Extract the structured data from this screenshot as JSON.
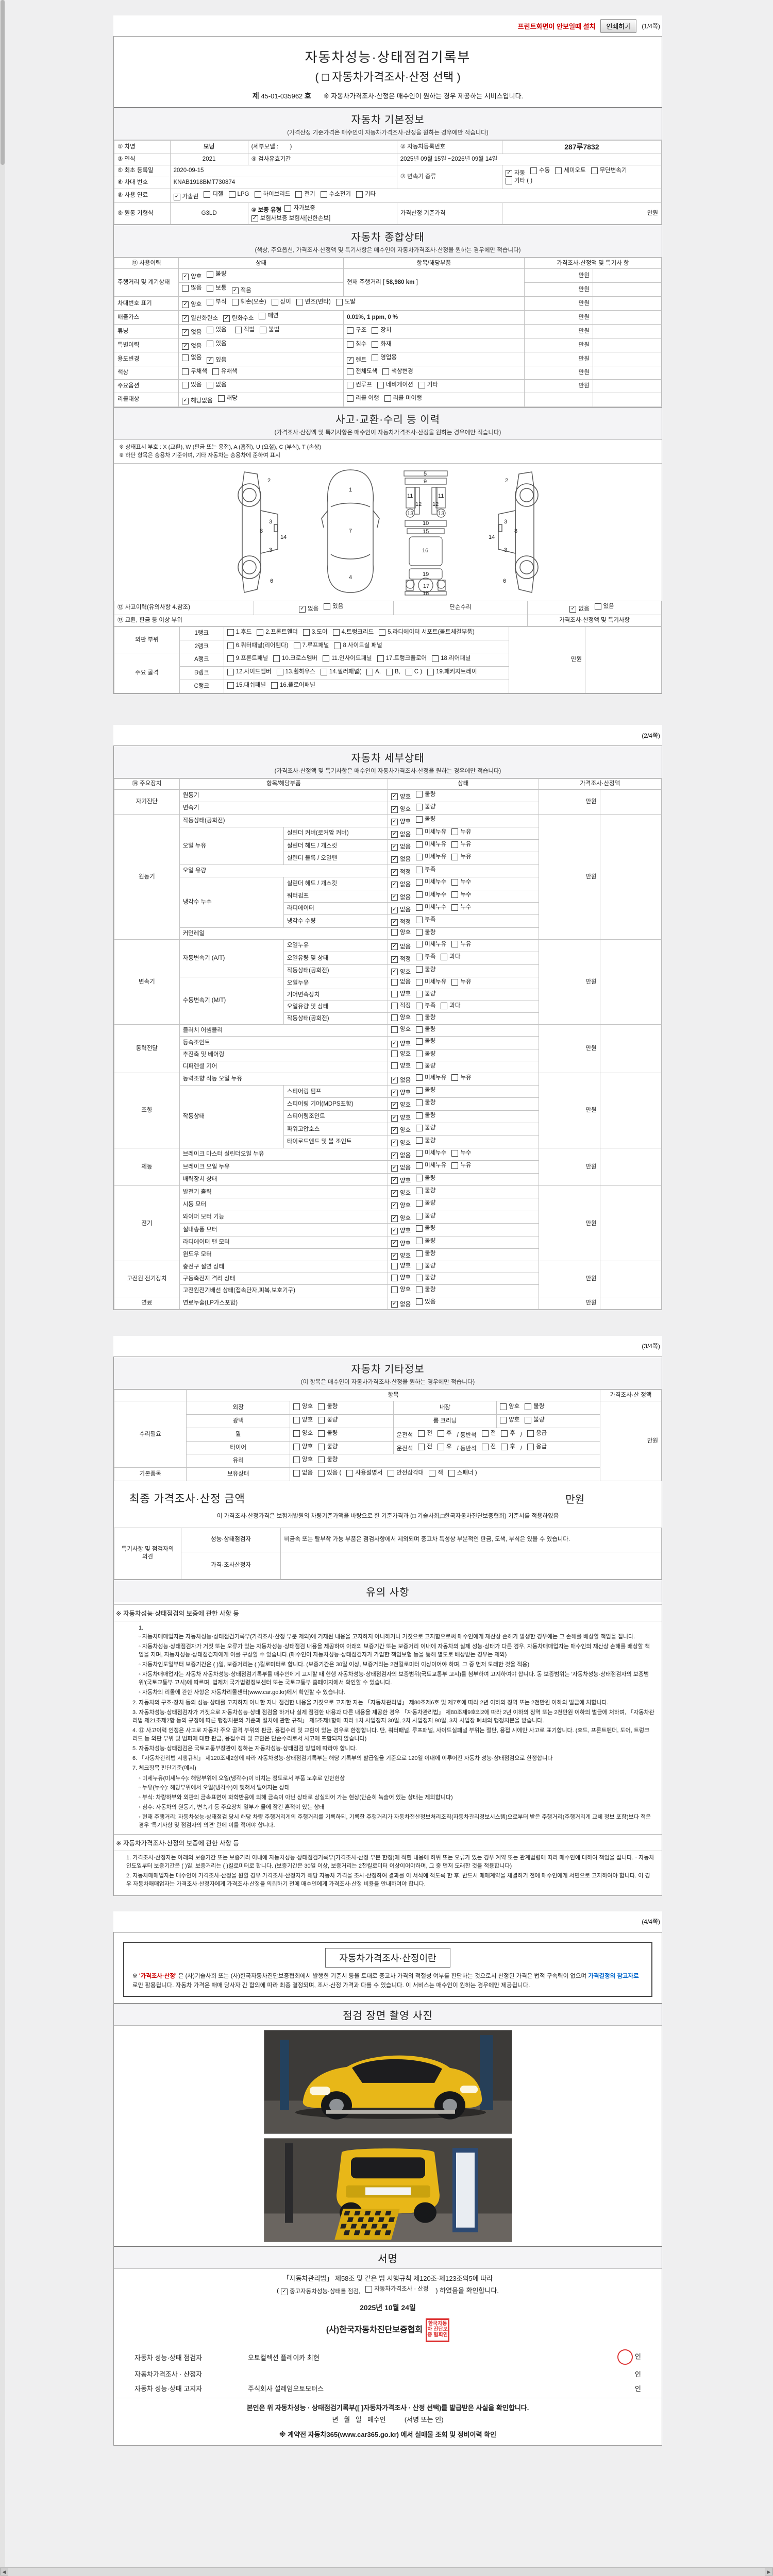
{
  "chrome": {
    "print_hint": "프린트화면이 안보일때 설치",
    "print_button": "인쇄하기",
    "page_marks": [
      "(1/4쪽)",
      "(2/4쪽)",
      "(3/4쪽)",
      "(4/4쪽)"
    ]
  },
  "title": {
    "line1": "자동차성능·상태점검기록부",
    "line2": "( □ 자동차가격조사·산정 선택 )",
    "no_prefix": "제",
    "no_value": "45-01-035962",
    "no_suffix": "호",
    "service_note": "※ 자동차가격조사·산정은 매수인이 원하는 경우 제공하는 서비스입니다."
  },
  "basic": {
    "band_title": "자동차 기본정보",
    "band_sub": "(가격산정 기준가격은 매수인이 자동차가격조사·산정을 원하는 경우에만 적습니다)",
    "f1": "① 차명",
    "v1": "모닝",
    "v1b": "(세부모델 :",
    "v1c": ")",
    "f2": "② 자동차등록번호",
    "v2": "287루7832",
    "f3": "③ 연식",
    "v3": "2021",
    "f4": "④ 검사유효기간",
    "v4": "2025년 09월 15일 ~2026년 09월 14일",
    "f5": "⑤ 최초 등록일",
    "v5": "2020-09-15",
    "f6": "⑥ 차대 번호",
    "v6": "KNAB1918BMT730874",
    "f7": "⑦ 변속기 종류",
    "trans_opts": [
      {
        "t": "자동",
        "c": true
      },
      {
        "t": "수동",
        "c": false
      },
      {
        "t": "세미오토",
        "c": false
      },
      {
        "t": "무단변속기",
        "c": false
      }
    ],
    "trans_opts2": [
      {
        "t": "기타 (          )",
        "c": false
      }
    ],
    "f8": "⑧ 사용 연료",
    "fuel_opts": [
      {
        "t": "가솔린",
        "c": true
      },
      {
        "t": "디젤",
        "c": false
      },
      {
        "t": "LPG",
        "c": false
      },
      {
        "t": "하이브리드",
        "c": false
      },
      {
        "t": "전기",
        "c": false
      },
      {
        "t": "수소전기",
        "c": false
      },
      {
        "t": "기타",
        "c": false
      }
    ],
    "f9": "⑨ 원동 기형식",
    "v9": "G3LD",
    "f10": "⑩ 보증 유형",
    "warranty_opts": [
      {
        "t": "자가보증",
        "c": false
      },
      {
        "t": "보험사보증 보험사[신한손보]",
        "c": true
      }
    ],
    "price_base_label": "가격산정 기준가격",
    "price_base_unit": "만원"
  },
  "overall": {
    "band_title": "자동차 종합상태",
    "band_sub": "(색상, 주요옵션, 가격조사·산정액 및 특기사항은 매수인이 자동차가격조사·산정을 원하는 경우에만 적습니다)",
    "h1": "⑪ 사용이력",
    "h2": "상태",
    "h3": "항목/해당부품",
    "h4": "가격조사·산정액 및 특기사 항",
    "r1k": "주행거리 및 계기상태",
    "r1o1": [
      {
        "t": "양호",
        "c": true
      },
      {
        "t": "불량",
        "c": false
      }
    ],
    "r1o2": [
      {
        "t": "많음",
        "c": false
      },
      {
        "t": "보통",
        "c": false
      },
      {
        "t": "적음",
        "c": true
      }
    ],
    "r1mid": "현재 주행거리 [",
    "r1km": "58,980 km",
    "r1mid2": "]",
    "r2k": "차대번호 표기",
    "r2o": [
      {
        "t": "양호",
        "c": true
      },
      {
        "t": "부식",
        "c": false
      },
      {
        "t": "훼손(오손)",
        "c": false
      },
      {
        "t": "상이",
        "c": false
      },
      {
        "t": "변조(변타)",
        "c": false
      },
      {
        "t": "도말",
        "c": false
      }
    ],
    "r3k": "배출가스",
    "r3o": [
      {
        "t": "일산화탄소",
        "c": true
      },
      {
        "t": "탄화수소",
        "c": true
      },
      {
        "t": "매연",
        "c": false
      }
    ],
    "r3v": "0.01%,  1 ppm,  0 %",
    "r4k": "튜닝",
    "r4o1": [
      {
        "t": "없음",
        "c": true
      },
      {
        "t": "있음",
        "c": false
      }
    ],
    "r4o2": [
      {
        "t": "적법",
        "c": false
      },
      {
        "t": "불법",
        "c": false
      }
    ],
    "r4o3": [
      {
        "t": "구조",
        "c": false
      },
      {
        "t": "장치",
        "c": false
      }
    ],
    "r5k": "특별이력",
    "r5o1": [
      {
        "t": "없음",
        "c": true
      },
      {
        "t": "있음",
        "c": false
      }
    ],
    "r5o2": [
      {
        "t": "침수",
        "c": false
      },
      {
        "t": "화재",
        "c": false
      }
    ],
    "r6k": "용도변경",
    "r6o1": [
      {
        "t": "없음",
        "c": false
      },
      {
        "t": "있음",
        "c": true
      }
    ],
    "r6o2": [
      {
        "t": "렌트",
        "c": true
      },
      {
        "t": "영업용",
        "c": false
      }
    ],
    "r7k": "색상",
    "r7o1": [
      {
        "t": "무채색",
        "c": false
      },
      {
        "t": "유채색",
        "c": false
      }
    ],
    "r7o2": [
      {
        "t": "전체도색",
        "c": false
      },
      {
        "t": "색상변경",
        "c": false
      }
    ],
    "r8k": "주요옵션",
    "r8o1": [
      {
        "t": "있음",
        "c": false
      },
      {
        "t": "없음",
        "c": false
      }
    ],
    "r8o2": [
      {
        "t": "썬루프",
        "c": false
      },
      {
        "t": "네비게이션",
        "c": false
      },
      {
        "t": "기타",
        "c": false
      }
    ],
    "r9k": "리콜대상",
    "r9o1": [
      {
        "t": "해당없음",
        "c": true
      },
      {
        "t": "해당",
        "c": false
      }
    ],
    "r9o2": [
      {
        "t": "리콜 이행",
        "c": false
      },
      {
        "t": "리콜 미이행",
        "c": false
      }
    ],
    "mwon": "만원"
  },
  "accident": {
    "band_title": "사고·교환·수리 등 이력",
    "band_sub": "(가격조사·산정액 및 특기사항은 매수인이 자동차가격조사·산정을 원하는 경우에만 적습니다)",
    "note1": "※ 상태표시 부호 : X (교환), W (판금 또는 용접), A (흠집), U (요철), C (부식), T (손상)",
    "note2": "※ 하단 항목은 승용차 기준이며, 기타 자동차는 승용차에 준하여 표시",
    "r12k": "⑫ 사고이력(유의사항 4.참조)",
    "r12o1": [
      {
        "t": "없음",
        "c": true
      },
      {
        "t": "있음",
        "c": false
      }
    ],
    "r12mid": "단순수리",
    "r12o2": [
      {
        "t": "없음",
        "c": true
      },
      {
        "t": "있음",
        "c": false
      }
    ],
    "r13k": "⑬ 교환, 판금 등 이상 부위",
    "r13h": "가격조사·산정액 및 특기사항",
    "g1": "외판 부위",
    "g1r1": "1랭크",
    "g1r1o": [
      {
        "t": "1.후드",
        "c": false
      },
      {
        "t": "2.프론트휀더",
        "c": false
      },
      {
        "t": "3.도어",
        "c": false
      },
      {
        "t": "4.트렁크리드",
        "c": false
      },
      {
        "t": "5.라디에이터 서포트(볼트체결부품)",
        "c": false
      }
    ],
    "g1r2": "2랭크",
    "g1r2o": [
      {
        "t": "6.쿼터패널(리어휀다)",
        "c": false
      },
      {
        "t": "7.루프패널",
        "c": false
      },
      {
        "t": "8.사이드실 패널",
        "c": false
      }
    ],
    "g2": "주요 골격",
    "g2r1": "A랭크",
    "g2r1o": [
      {
        "t": "9.프론트패널",
        "c": false
      },
      {
        "t": "10.크로스멤버",
        "c": false
      },
      {
        "t": "11.인사이드패널",
        "c": false
      },
      {
        "t": "17.트렁크플로어",
        "c": false
      },
      {
        "t": "18.리어패널",
        "c": false
      }
    ],
    "g2r2": "B랭크",
    "g2r2o": [
      {
        "t": "12.사이드멤버",
        "c": false
      },
      {
        "t": "13.휠하우스",
        "c": false
      },
      {
        "t": "14.필러패널(",
        "c": false
      },
      {
        "t": "A,",
        "c": false
      },
      {
        "t": "B,",
        "c": false
      },
      {
        "t": "C )",
        "c": false
      },
      {
        "t": "19.패키지트레이",
        "c": false
      }
    ],
    "g2r3": "C랭크",
    "g2r3o": [
      {
        "t": "15.대쉬패널",
        "c": false
      },
      {
        "t": "16.플로어패널",
        "c": false
      }
    ],
    "mwon": "만원"
  },
  "detail": {
    "band_title": "자동차 세부상태",
    "band_sub": "(가격조사·산정액 및 특기사항은 매수인이 자동차가격조사·산정을 원하는 경우에만 적습니다)",
    "h1": "⑭ 주요장치",
    "h2": "항목/해당부품",
    "h3": "상태",
    "h4": "가격조사·산정액",
    "mwon": "만원",
    "g1": "자기진단",
    "g1r1": "원동기",
    "g1r2": "변속기",
    "gb_ok": [
      {
        "t": "양호",
        "c": true
      },
      {
        "t": "불량",
        "c": false
      }
    ],
    "gb_no": [
      {
        "t": "양호",
        "c": false
      },
      {
        "t": "불량",
        "c": false
      }
    ],
    "g2": "원동기",
    "g2r1": "작동상태(공회전)",
    "g2s1": "오일 누유",
    "g2s1r1": "실린더 커버(로커암 커버)",
    "g2s1r2": "실린더 헤드 / 개스킷",
    "g2s1r3": "실린더 블록 / 오일팬",
    "leak_no": [
      {
        "t": "없음",
        "c": true
      },
      {
        "t": "미세누유",
        "c": false
      },
      {
        "t": "누유",
        "c": false
      }
    ],
    "leak_none": [
      {
        "t": "없음",
        "c": false
      },
      {
        "t": "미세누유",
        "c": false
      },
      {
        "t": "누유",
        "c": false
      }
    ],
    "g2r2": "오일 유량",
    "vol_ok": [
      {
        "t": "적정",
        "c": true
      },
      {
        "t": "부족",
        "c": false
      }
    ],
    "g2s2": "냉각수 누수",
    "g2s2r1": "실린더 헤드 / 개스킷",
    "g2s2r2": "워터펌프",
    "g2s2r3": "라디에이터",
    "g2s2r4": "냉각수 수량",
    "water_no": [
      {
        "t": "없음",
        "c": true
      },
      {
        "t": "미세누수",
        "c": false
      },
      {
        "t": "누수",
        "c": false
      }
    ],
    "g2r3": "커먼레일",
    "g3": "변속기",
    "g3s1": "자동변속기 (A/T)",
    "g3s1r1": "오일누유",
    "g3s1r2": "오일유량 및 상태",
    "g3s1r3": "작동상태(공회전)",
    "vol3_ok": [
      {
        "t": "적정",
        "c": true
      },
      {
        "t": "부족",
        "c": false
      },
      {
        "t": "과다",
        "c": false
      }
    ],
    "vol3_no": [
      {
        "t": "적정",
        "c": false
      },
      {
        "t": "부족",
        "c": false
      },
      {
        "t": "과다",
        "c": false
      }
    ],
    "g3s2": "수동변속기 (M/T)",
    "g3s2r1": "오일누유",
    "g3s2r2": "기어변속장치",
    "g3s2r3": "오일유량 및 상태",
    "g3s2r4": "작동상태(공회전)",
    "g4": "동력전달",
    "g4r1": "클러치 어셈블리",
    "g4r2": "등속조인트",
    "g4r3": "추진축 및 베어링",
    "g4r4": "디퍼렌셜 기어",
    "g5": "조향",
    "g5r1": "동력조향 작동 오일 누유",
    "g5s1": "작동상태",
    "g5s1r1": "스티어링 펌프",
    "g5s1r2": "스티어링 기어(MDPS포함)",
    "g5s1r3": "스티어링조인트",
    "g5s1r4": "파워고압호스",
    "g5s1r5": "타이로드엔드 및 볼 조인트",
    "g6": "제동",
    "g6r1": "브레이크 마스터 실린더오일 누유",
    "g6r2": "브레이크 오일 누유",
    "g6r3": "배력장치 상태",
    "g7": "전기",
    "g7r1": "발전기 출력",
    "g7r2": "시동 모터",
    "g7r3": "와이퍼 모터 기능",
    "g7r4": "실내송풍 모터",
    "g7r5": "라디에이터 팬 모터",
    "g7r6": "윈도우 모터",
    "g8": "고전원 전기장치",
    "g8r1": "충전구 절연 상태",
    "g8r2": "구동축전지 격리 상태",
    "g8r3": "고전원전기배선 상태(접속단자,피복,보호기구)",
    "g9": "연료",
    "g9r1": "연료누출(LP가스포함)",
    "fuel_no": [
      {
        "t": "없음",
        "c": true
      },
      {
        "t": "있음",
        "c": false
      }
    ]
  },
  "other": {
    "band_title": "자동차 기타정보",
    "band_sub": "(이 항목은 매수인이 자동차가격조사·산정을 원하는 경우에만 적습니다)",
    "h_item": "항목",
    "h_price": "가격조사·산 정액",
    "g1": "수리필요",
    "r1a": "외장",
    "r1b": "내장",
    "r2a": "광택",
    "r2b": "룸 크리닝",
    "r3a": "휠",
    "r4a": "타이어",
    "r5a": "유리",
    "gbn": [
      {
        "t": "양호",
        "c": false
      },
      {
        "t": "불량",
        "c": false
      }
    ],
    "wheel_extra": [
      {
        "t": "운전석",
        "c": null
      },
      {
        "t": "전",
        "c": false
      },
      {
        "t": "후",
        "c": false
      },
      {
        "t": "/ 동반석",
        "c": null
      },
      {
        "t": "전",
        "c": false
      },
      {
        "t": "후",
        "c": false
      },
      {
        "t": "/",
        "c": null
      },
      {
        "t": "응급",
        "c": false
      }
    ],
    "g2": "기본품목",
    "g2r1": "보유상태",
    "g2o1": [
      {
        "t": "없음",
        "c": false
      },
      {
        "t": "있음 (",
        "c": false
      },
      {
        "t": "사용설명서",
        "c": false
      },
      {
        "t": "안전삼각대",
        "c": false
      },
      {
        "t": "잭",
        "c": false
      },
      {
        "t": "스패너 )",
        "c": false
      }
    ],
    "mwon": "만원"
  },
  "final": {
    "label": "최종 가격조사·산정 금액",
    "unit": "만원",
    "note": "이 가격조사·산정가격은 보험개발원의 차량기준가액을 바탕으로 한 기준가격과 (□ 기술사회,□한국자동차진단보증협회) 기준서를 적용하였음",
    "op_head": "특기사항 및 점검자의 의견",
    "op_r1k": "성능·상태점검자",
    "op_r1v": "비금속 또는 탈부착 가능 부품은 점검사항에서 제외되며 중고차 특성상 부분적인 판금, 도색, 부식은 있을 수 있습니다.",
    "op_r2k": "가격·조사산정자",
    "op_r2v": ""
  },
  "notice": {
    "band_title": "유의 사항",
    "h1": "※ 자동차성능·상태점검의 보증에 관한 사항 등",
    "n1": "1.",
    "n1_subs": [
      "자동차매매업자는 자동차성능·상태점검기록부(가격조사·산정 부분 제외)에 기재된 내용을 고지하지 아니하거나 거짓으로 고지함으로써 매수인에게 재산상 손해가 발생한 경우에는 그 손해를 배상할 책임을 집니다.",
      "자동차성능·상태점검자가 거짓 또는 오류가 있는 자동차성능·상태점검 내용을 제공하여 아래의 보증기간 또는 보증거리 이내에 자동차의 실제 성능·상태가 다른 경우, 자동차매매업자는 매수인의 재산상 손해를 배상할 책임을 지며, 자동차성능·상태점검자에게 이를 구상할 수 있습니다.(매수인이 자동차성능·상태점검자가 가입한 책임보험 등을 통해 별도로 배상받는 경우는 제외)",
      "자동차인도일부터 보증기간은 (      )일, 보증거리는 (      )킬로미터로 합니다. (보증기간은 30일 이상, 보증거리는 2천킬로미터 이상이어야 하며, 그 중 먼저 도래한 것을 적용)",
      "자동차매매업자는 자동차 자동차성능·상태점검기록부를 매수인에게 고지할 때 현행 자동차성능·상태점검자의 보증범위(국토교통부 고시)를 첨부하여 고지하여야 합니다. 동 보증범위는 '자동차성능·상태점검자의 보증범위'(국토교통부 고시)에 따르며, 법제처 국가법령정보센터 또는 국토교통부 홈페이지에서 확인할 수 있습니다.",
      "자동차의 리콜에 관한 사항은 자동차리콜센터(www.car.go.kr)에서 확인할 수 있습니다."
    ],
    "items": [
      "2. 자동차의 구조·장치 등의 성능·상태를 고지하지 아니한 자나 점검한 내용을 거짓으로 고지한 자는 「자동차관리법」 제80조제6호 및 제7호에 따라 2년 이하의 징역 또는 2천만원 이하의 벌금에 처합니다.",
      "3. 자동차성능·상태점검자가 거짓으로 자동차성능·상태 점검을 하거나 실제 점검한 내용과 다른 내용을 제공한 경우 「자동차관리법」 제80조제9호의2에 따라 2년 이하의 징역 또는 2천만원 이하의 벌금에 처하며, 「자동차관리법 제21조제2항 등의 규정에 따른 행정처분의 기준과 절차에 관한 규칙」 제5조제1항에 따라 1차 사업정지 30일, 2차 사업정지 90일, 3차 사업장 폐쇄의 행정처분을 받습니다.",
      "4. ⑫ 사고이력 인정은 사고로 자동차 주요 골격 부위의 판금, 용접수리 및 교환이 있는 경우로 한정합니다. 단, 쿼터패널, 루프패널, 사이드실패널 부위는 절단, 용접 시에만 사고로 표기합니다. (후드, 프론트펜더, 도어, 트렁크리드 등 외판 부위 및 범퍼에 대한 판금, 용접수리 및 교환은 단순수리로서 사고에 포함되지 않습니다)",
      "5. 자동차성능·상태점검은 국토교통부장관이 정하는 자동차성능·상태점검 방법에 따라야 합니다.",
      "6. 「자동차관리법 시행규칙」 제120조제2항에 따라 자동차성능·상태점검기록부는 해당 기록부의 발급일을 기준으로 120일 이내에 이루어진 자동차 성능·상태점검으로 한정합니다",
      "7. 체크항목 판단기준(예시)"
    ],
    "n7_subs": [
      "미세누유(미세누수): 해당부위에 오일(냉각수)이 비치는 정도로서 부품 노후로 인한현상",
      "누유(누수): 해당부위에서 오일(냉각수)이 맺혀서 떨어지는 상태",
      "부식: 차량하부와 외판의 금속표면이 화학반응에 의해 금속이 아닌 상태로 상실되어 가는 현상(단순히 녹슬어 있는 상태는 제외합니다)",
      "침수: 자동차의 원동기, 변속기 등 주요장치 일부가 물에 잠긴 흔적이 있는 상태",
      "현재 주행거리: 자동차성능·상태점검 당시 해당 차량 주행거리계의 주행거리를 기록하되, 기록한 주행거리가 자동차전산정보처리조직(자동차관리정보시스템)으로부터 받은 주행거리(주행거리계 교체 정보 포함)보다 적은 경우 '특기사항 및 점검자의 의견' 란에 이를 적어야 합니다."
    ],
    "h2": "※ 자동차가격조사·산정의 보증에 관한 사항 등",
    "items2": [
      "1. 가격조사·산정자는 아래의 보증기간 또는 보증거리 이내에 자동차성능·상태점검기록부(가격조사·산정 부분 한정)에 적힌 내용에 허위 또는 오류가 있는 경우 계약 또는 관계법령에 따라 매수인에 대하여 책임을 집니다. · 자동차인도일부터 보증기간은 (      )일, 보증거리는 (      )킬로미터로 합니다. (보증기간은 30일 이상, 보증거리는 2천킬로미터 이상이어야하며, 그 중 먼저 도래한 것을 적용합니다)",
      "2. 자동차매매업자는 매수인이 가격조사·산정을 원할 경우 가격조사·산정자가 해당 자동차 가격을 조사·산정하여 결과를 이 서식에 적도록 한 후, 반드시 매매계약을 체결하기 전에 매수인에게 서면으로 고지하여야 합니다. 이 경우 자동차매매업자는 가격조사·산정자에게 가격조사·산정을 의뢰하기 전에 매수인에게 가격조사·산정 비용을 안내하여야 합니다."
    ]
  },
  "pricing_info": {
    "box_title": "자동차가격조사·산정이란",
    "seg1": "※ ",
    "seg2": "'가격조사·산정'",
    "seg3": " 은 (사)기술사회 또는 (사)한국자동차진단보증협회에서 발행한 기준서 등을 토대로 중고차 가격의 적절성 여부를 판단하는 것으로서 산정된 가격은 법적 구속력이 없으며 ",
    "seg4": "가격결정의 참고자료",
    "seg5": "로만 활용됩니다. 자동차 가격은 매매 당사자 간 합의에 따라 최종 결정되며, 조사·산정 가격과 다를 수 있습니다. 이 서비스는 매수인이 원하는 경우에만 제공됩니다."
  },
  "photos": {
    "band_title": "점검 장면 촬영 사진"
  },
  "signature": {
    "band_title": "서명",
    "law_line1": "「자동차관리법」 제58조 및 같은 법 시행규칙 제120조·제123조의5에 따라",
    "law_pre": "( ",
    "law_chk1": {
      "t": "중고자동차성능·상태를 점검,",
      "c": true
    },
    "law_chk2": {
      "t": "자동차가격조사 · 산정",
      "c": false
    },
    "law_post": " ) 하였음을 확인합니다.",
    "date": "2025년 10월 24일",
    "org": "(사)한국자동차진단보증협회",
    "org_seal": "한국자동차 진단보증 협회인",
    "in": "인",
    "row1k": "자동차 성능·상태 점검자",
    "row1v": "오토컬렉션 플레이카 최현",
    "row2k": "자동차가격조사 · 산정자",
    "row2v": "",
    "row3k": "자동차 성능·상태 고지자",
    "row3v": "주식회사 설레임오토모터스",
    "buyer_confirm": "본인은 위 자동차성능 · 상태점검기록부([  ]자동차가격조사 · 산정 선택)를 발급받은 사실을 확인합니다.",
    "buyer_line": "년   월   일   매수인          (서명 또는 인)",
    "footer": "※ 계약전 자동차365(www.car365.go.kr) 에서 실매물 조회 및 정비이력 확인"
  }
}
